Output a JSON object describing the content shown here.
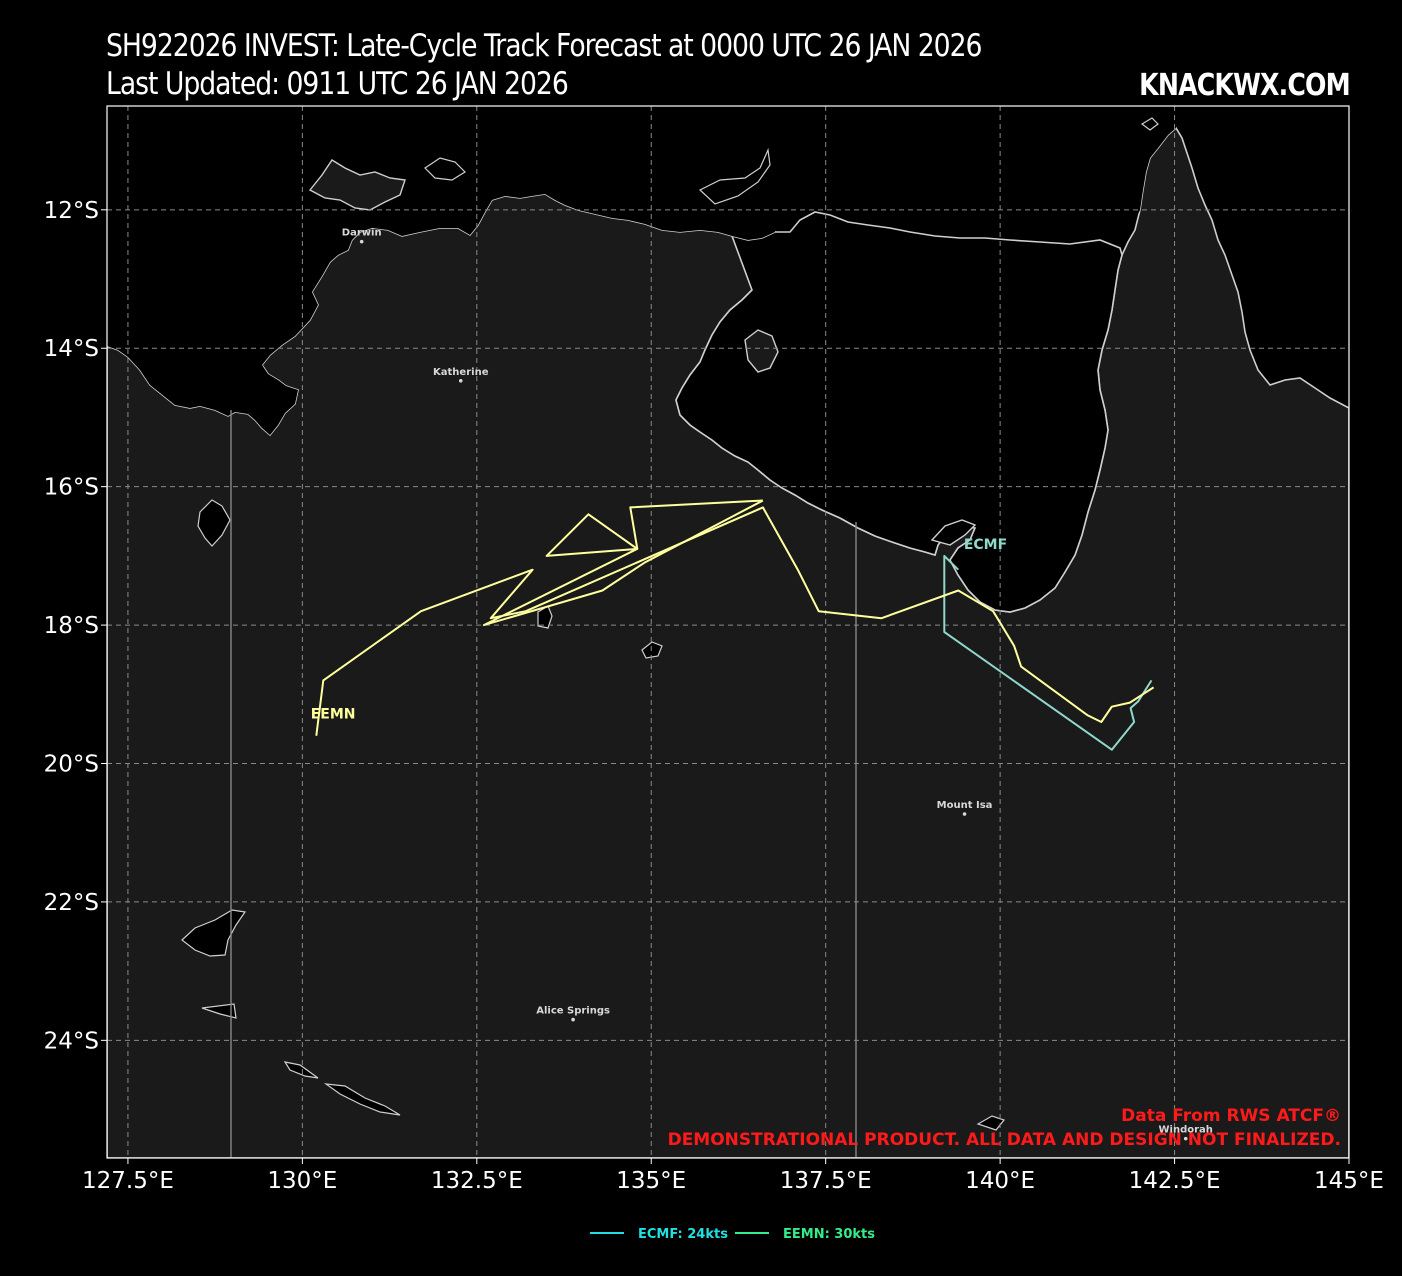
{
  "header": {
    "title_line_1": "SH922026 INVEST: Late-Cycle Track Forecast at 0000 UTC 26 JAN 2026",
    "title_line_2": "Last Updated: 0911 UTC 26 JAN 2026",
    "brand": "KNACKWX.COM"
  },
  "map": {
    "lon_range": [
      127.2,
      145.0
    ],
    "lat_range": [
      -25.7,
      -10.5
    ],
    "lon_ticks": [
      {
        "value": 127.5,
        "label": "127.5°E"
      },
      {
        "value": 130.0,
        "label": "130°E"
      },
      {
        "value": 132.5,
        "label": "132.5°E"
      },
      {
        "value": 135.0,
        "label": "135°E"
      },
      {
        "value": 137.5,
        "label": "137.5°E"
      },
      {
        "value": 140.0,
        "label": "140°E"
      },
      {
        "value": 142.5,
        "label": "142.5°E"
      },
      {
        "value": 145.0,
        "label": "145°E"
      }
    ],
    "lat_ticks": [
      {
        "value": -12,
        "label": "12°S"
      },
      {
        "value": -14,
        "label": "14°S"
      },
      {
        "value": -16,
        "label": "16°S"
      },
      {
        "value": -18,
        "label": "18°S"
      },
      {
        "value": -20,
        "label": "20°S"
      },
      {
        "value": -22,
        "label": "22°S"
      },
      {
        "value": -24,
        "label": "24°S"
      }
    ],
    "colors": {
      "land": "#1a1a1a",
      "ocean": "#000000",
      "coast": "#cfcfcf",
      "grid": "#8a8a8a",
      "border": "#888888"
    },
    "cities": [
      {
        "name": "Darwin",
        "lon": 130.85,
        "lat": -12.46
      },
      {
        "name": "Katherine",
        "lon": 132.27,
        "lat": -14.47
      },
      {
        "name": "Mount Isa",
        "lon": 139.49,
        "lat": -20.73
      },
      {
        "name": "Alice Springs",
        "lon": 133.88,
        "lat": -23.7
      },
      {
        "name": "Windorah",
        "lon": 142.66,
        "lat": -25.42
      }
    ]
  },
  "tracks": [
    {
      "name": "ECMF",
      "color": "#8fd8cc",
      "label_pos": {
        "lon": 139.48,
        "lat": -16.9
      },
      "points": [
        {
          "lon": 142.17,
          "lat": -18.8
        },
        {
          "lon": 141.98,
          "lat": -19.1
        },
        {
          "lon": 141.87,
          "lat": -19.2
        },
        {
          "lon": 141.92,
          "lat": -19.4
        },
        {
          "lon": 141.6,
          "lat": -19.8
        },
        {
          "lon": 139.2,
          "lat": -18.1
        },
        {
          "lon": 139.2,
          "lat": -17.0
        },
        {
          "lon": 139.4,
          "lat": -17.2
        }
      ]
    },
    {
      "name": "EEMN",
      "color": "#ffff9e",
      "label_pos": {
        "lon": 130.12,
        "lat": -19.35
      },
      "points": [
        {
          "lon": 142.2,
          "lat": -18.9
        },
        {
          "lon": 141.86,
          "lat": -19.12
        },
        {
          "lon": 141.6,
          "lat": -19.18
        },
        {
          "lon": 141.45,
          "lat": -19.4
        },
        {
          "lon": 141.25,
          "lat": -19.3
        },
        {
          "lon": 140.3,
          "lat": -18.6
        },
        {
          "lon": 140.2,
          "lat": -18.3
        },
        {
          "lon": 139.9,
          "lat": -17.8
        },
        {
          "lon": 139.4,
          "lat": -17.5
        },
        {
          "lon": 138.3,
          "lat": -17.9
        },
        {
          "lon": 137.4,
          "lat": -17.8
        },
        {
          "lon": 137.1,
          "lat": -17.2
        },
        {
          "lon": 136.6,
          "lat": -16.3
        },
        {
          "lon": 133.2,
          "lat": -17.8
        },
        {
          "lon": 132.7,
          "lat": -17.9
        },
        {
          "lon": 133.3,
          "lat": -17.2
        },
        {
          "lon": 131.7,
          "lat": -17.8
        },
        {
          "lon": 130.3,
          "lat": -18.8
        },
        {
          "lon": 130.2,
          "lat": -19.6
        }
      ],
      "loop_points": [
        {
          "lon": 136.6,
          "lat": -16.2
        },
        {
          "lon": 134.7,
          "lat": -16.3
        },
        {
          "lon": 134.8,
          "lat": -16.9
        },
        {
          "lon": 133.5,
          "lat": -17.0
        },
        {
          "lon": 134.1,
          "lat": -16.4
        },
        {
          "lon": 134.8,
          "lat": -16.9
        },
        {
          "lon": 132.6,
          "lat": -18.0
        },
        {
          "lon": 134.3,
          "lat": -17.5
        },
        {
          "lon": 134.9,
          "lat": -17.1
        },
        {
          "lon": 136.6,
          "lat": -16.2
        }
      ]
    }
  ],
  "legend": [
    {
      "label": "ECMF: 24kts",
      "color": "#22e0e0"
    },
    {
      "label": "EEMN: 30kts",
      "color": "#33ee88"
    }
  ],
  "disclaimer": {
    "line_1": "Data From RWS ATCF®",
    "line_2": "DEMONSTRATIONAL PRODUCT. ALL DATA AND DESIGN NOT FINALIZED."
  }
}
